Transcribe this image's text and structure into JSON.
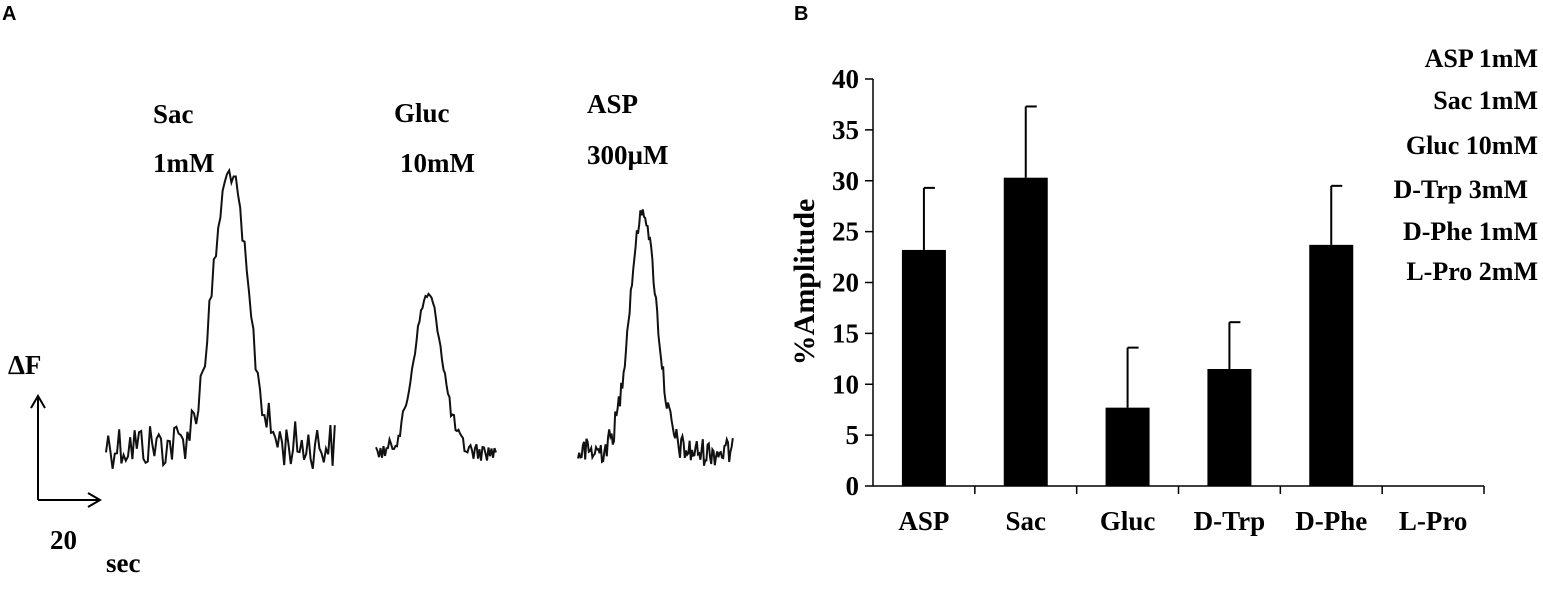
{
  "panel_a": {
    "letter": "A",
    "traces": [
      {
        "label_line1": "Sac",
        "label_line2": "1mM"
      },
      {
        "label_line1": "Gluc",
        "label_line2": "10mM"
      },
      {
        "label_line1": "ASP",
        "label_line2": "300µM"
      }
    ],
    "scale_bar": {
      "y_label": "ΔF",
      "x_value": "20",
      "x_unit": "sec"
    }
  },
  "panel_b": {
    "letter": "B",
    "legend": [
      "ASP 1mM",
      "Sac 1mM",
      "Gluc 10mM",
      "D-Trp 3mM",
      "D-Phe 1mM",
      "L-Pro 2mM"
    ]
  },
  "chart_data": {
    "type": "bar",
    "categories": [
      "ASP",
      "Sac",
      "Gluc",
      "D-Trp",
      "D-Phe",
      "L-Pro"
    ],
    "values": [
      23.2,
      30.3,
      7.7,
      11.5,
      23.7,
      0
    ],
    "errors": [
      6.1,
      7.0,
      5.9,
      4.6,
      5.8,
      0
    ],
    "ylabel": "%Amplitude",
    "xlabel": "",
    "ylim": [
      0,
      40
    ],
    "yticks": [
      0,
      5,
      10,
      15,
      20,
      25,
      30,
      35,
      40
    ],
    "bar_color": "#000000",
    "grid": false,
    "legend_position": "top-right"
  }
}
